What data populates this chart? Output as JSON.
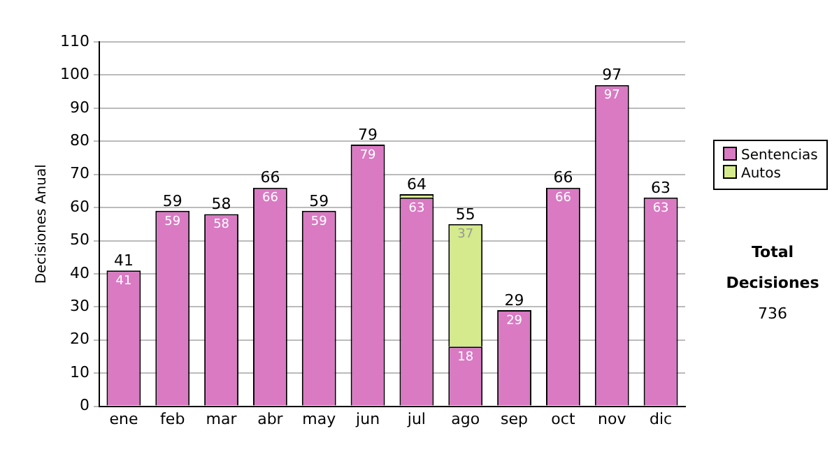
{
  "chart_data": {
    "type": "bar",
    "stacked": true,
    "ylabel": "Decisiones Anual",
    "categories": [
      "ene",
      "feb",
      "mar",
      "abr",
      "may",
      "jun",
      "jul",
      "ago",
      "sep",
      "oct",
      "nov",
      "dic"
    ],
    "series": [
      {
        "name": "Sentencias",
        "color": "#d97ac3",
        "values": [
          41,
          59,
          58,
          66,
          59,
          79,
          63,
          18,
          29,
          66,
          97,
          63
        ],
        "value_labels": [
          "41",
          "59",
          "58",
          "66",
          "59",
          "79",
          "63",
          "18",
          "29",
          "66",
          "97",
          "63"
        ]
      },
      {
        "name": "Autos",
        "color": "#d4ea8c",
        "values": [
          0,
          0,
          0,
          0,
          0,
          0,
          1,
          37,
          0,
          0,
          0,
          0
        ],
        "value_labels": [
          null,
          null,
          null,
          null,
          null,
          null,
          null,
          "37",
          null,
          null,
          null,
          null
        ]
      }
    ],
    "totals": [
      "41",
      "59",
      "58",
      "66",
      "59",
      "79",
      "64",
      "55",
      "29",
      "66",
      "97",
      "63"
    ],
    "ylim": [
      0,
      110
    ],
    "yticks": [
      0,
      10,
      20,
      30,
      40,
      50,
      60,
      70,
      80,
      90,
      100,
      110
    ],
    "grid": "y",
    "legend": "right",
    "annotations": [
      "Total Decisiones",
      "736"
    ]
  }
}
